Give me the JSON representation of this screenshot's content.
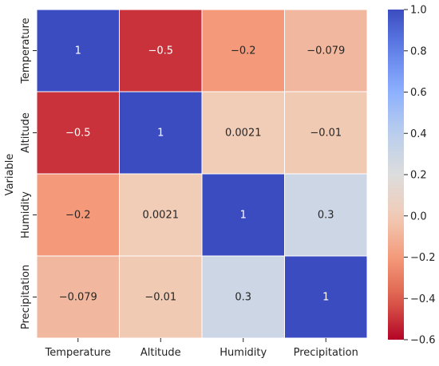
{
  "chart_data": {
    "type": "heatmap",
    "x_categories": [
      "Temperature",
      "Altitude",
      "Humidity",
      "Precipitation"
    ],
    "y_categories": [
      "Temperature",
      "Altitude",
      "Humidity",
      "Precipitation"
    ],
    "values": [
      [
        1,
        -0.5,
        -0.2,
        -0.079
      ],
      [
        -0.5,
        1,
        0.0021,
        -0.01
      ],
      [
        -0.2,
        0.0021,
        1,
        0.3
      ],
      [
        -0.079,
        -0.01,
        0.3,
        1
      ]
    ],
    "cell_labels": [
      [
        "1",
        "−0.5",
        "−0.2",
        "−0.079"
      ],
      [
        "−0.5",
        "1",
        "0.0021",
        "−0.01"
      ],
      [
        "−0.2",
        "0.0021",
        "1",
        "0.3"
      ],
      [
        "−0.079",
        "−0.01",
        "0.3",
        "1"
      ]
    ],
    "ylabel": "Variable",
    "xlabel": "",
    "title": "",
    "colormap": "coolwarm",
    "colorbar": {
      "min": -0.6,
      "max": 1.0,
      "ticks": [
        -0.6,
        -0.4,
        -0.2,
        0.0,
        0.2,
        0.4,
        0.6,
        0.8,
        1.0
      ],
      "tick_labels": [
        "−0.6",
        "−0.4",
        "−0.2",
        "0.0",
        "0.2",
        "0.4",
        "0.6",
        "0.8",
        "1.0"
      ]
    }
  }
}
